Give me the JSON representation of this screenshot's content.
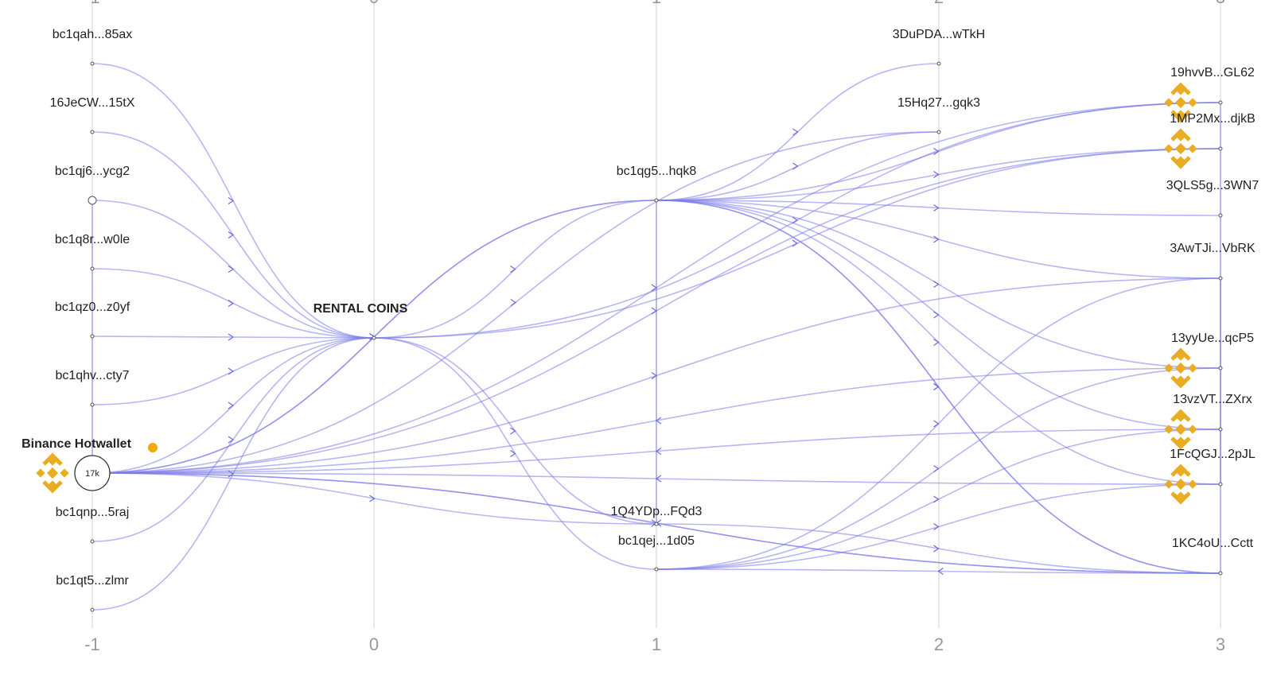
{
  "columns": [
    "-1",
    "0",
    "1",
    "2",
    "3"
  ],
  "nodes": [
    {
      "label": "bc1qah...85ax"
    },
    {
      "label": "16JeCW...15tX"
    },
    {
      "label": "bc1qj6...ycg2"
    },
    {
      "label": "bc1q8r...w0le"
    },
    {
      "label": "bc1qz0...z0yf"
    },
    {
      "label": "bc1qhv...cty7"
    },
    {
      "label": "Binance Hotwallet",
      "badge": "17k"
    },
    {
      "label": "bc1qnp...5raj"
    },
    {
      "label": "bc1qt5...zlmr"
    },
    {
      "label": "RENTAL COINS"
    },
    {
      "label": "bc1qg5...hqk8"
    },
    {
      "label": "1Q4YDp...FQd3"
    },
    {
      "label": "bc1qej...1d05"
    },
    {
      "label": "3DuPDA...wTkH"
    },
    {
      "label": "15Hq27...gqk3"
    },
    {
      "label": "19hvvB...GL62"
    },
    {
      "label": "1MP2Mx...djkB"
    },
    {
      "label": "3QLS5g...3WN7"
    },
    {
      "label": "3AwTJi...VbRK"
    },
    {
      "label": "13yyUe...qcP5"
    },
    {
      "label": "13vzVT...ZXrx"
    },
    {
      "label": "1FcQGJ...2pJL"
    },
    {
      "label": "1KC4oU...Cctt"
    }
  ]
}
